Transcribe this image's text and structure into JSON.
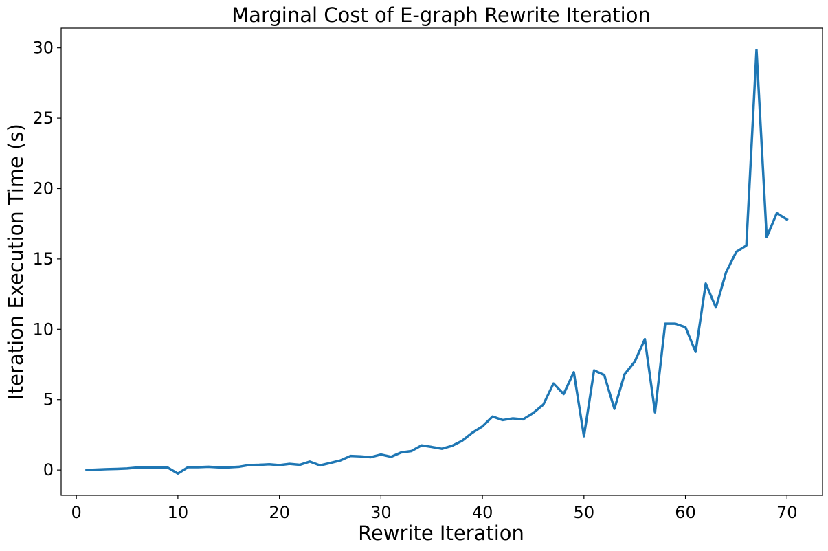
{
  "chart_data": {
    "type": "line",
    "title": "Marginal Cost of E-graph Rewrite Iteration",
    "xlabel": "Rewrite Iteration",
    "ylabel": "Iteration Execution Time (s)",
    "xlim": [
      -1.5,
      73.5
    ],
    "ylim": [
      -1.8,
      31.4
    ],
    "xticks": [
      0,
      10,
      20,
      30,
      40,
      50,
      60,
      70
    ],
    "yticks": [
      0,
      5,
      10,
      15,
      20,
      25,
      30
    ],
    "grid": false,
    "line_color": "#1f77b4",
    "series": [
      {
        "x": [
          1,
          2,
          3,
          4,
          5,
          6,
          7,
          8,
          9,
          10,
          11,
          12,
          13,
          14,
          15,
          16,
          17,
          18,
          19,
          20,
          21,
          22,
          23,
          24,
          25,
          26,
          27,
          28,
          29,
          30,
          31,
          32,
          33,
          34,
          35,
          36,
          37,
          38,
          39,
          40,
          41,
          42,
          43,
          44,
          45,
          46,
          47,
          48,
          49,
          50,
          51,
          52,
          53,
          54,
          55,
          56,
          57,
          58,
          59,
          60,
          61,
          62,
          63,
          64,
          65,
          66,
          67,
          68,
          69,
          70
        ],
        "values": [
          0.0,
          0.03,
          0.06,
          0.08,
          0.11,
          0.18,
          0.17,
          0.18,
          0.17,
          -0.25,
          0.2,
          0.2,
          0.23,
          0.19,
          0.19,
          0.23,
          0.35,
          0.37,
          0.41,
          0.35,
          0.44,
          0.37,
          0.6,
          0.33,
          0.5,
          0.68,
          1.0,
          0.97,
          0.91,
          1.1,
          0.94,
          1.25,
          1.35,
          1.75,
          1.64,
          1.51,
          1.72,
          2.08,
          2.65,
          3.1,
          3.8,
          3.55,
          3.67,
          3.6,
          4.05,
          4.65,
          6.15,
          5.4,
          6.95,
          2.4,
          7.08,
          6.75,
          4.35,
          6.8,
          7.7,
          9.3,
          4.1,
          10.4,
          10.4,
          10.15,
          8.4,
          13.25,
          11.55,
          14.05,
          15.5,
          15.95,
          29.85,
          16.55,
          18.25,
          17.8
        ]
      }
    ]
  }
}
